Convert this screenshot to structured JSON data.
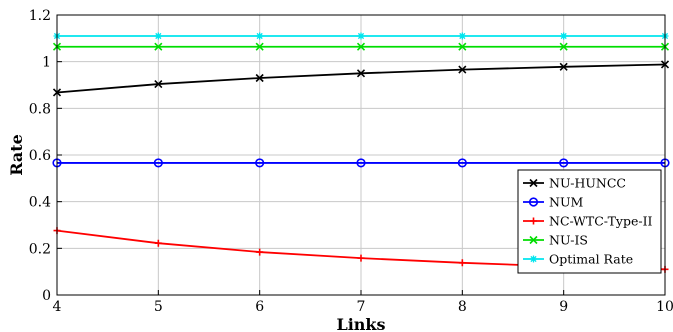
{
  "chart_data": {
    "type": "line",
    "xlabel": "Links",
    "ylabel": "Rate",
    "x": [
      4,
      5,
      6,
      7,
      8,
      9,
      10
    ],
    "xlim": [
      4,
      10
    ],
    "ylim": [
      0,
      1.2
    ],
    "xticks": [
      "4",
      "5",
      "6",
      "7",
      "8",
      "9",
      "10"
    ],
    "yticks": [
      "0",
      "0.2",
      "0.4",
      "0.6",
      "0.8",
      "1",
      "1.2"
    ],
    "grid": true,
    "legend_position": "bottom-right",
    "series": [
      {
        "name": "NU-HUNCC",
        "color": "#000000",
        "marker": "x",
        "values": [
          0.868,
          0.904,
          0.93,
          0.95,
          0.966,
          0.978,
          0.988
        ]
      },
      {
        "name": "NUM",
        "color": "#0000ff",
        "marker": "circle",
        "values": [
          0.566,
          0.566,
          0.566,
          0.566,
          0.566,
          0.566,
          0.566
        ]
      },
      {
        "name": "NC-WTC-Type-II",
        "color": "#ff0000",
        "marker": "plus",
        "values": [
          0.276,
          0.222,
          0.184,
          0.158,
          0.138,
          0.122,
          0.11
        ]
      },
      {
        "name": "NU-IS",
        "color": "#00dd00",
        "marker": "x",
        "values": [
          1.064,
          1.064,
          1.064,
          1.064,
          1.064,
          1.064,
          1.064
        ]
      },
      {
        "name": "Optimal Rate",
        "color": "#00e5ee",
        "marker": "star",
        "values": [
          1.11,
          1.11,
          1.11,
          1.11,
          1.11,
          1.11,
          1.11
        ]
      }
    ]
  }
}
